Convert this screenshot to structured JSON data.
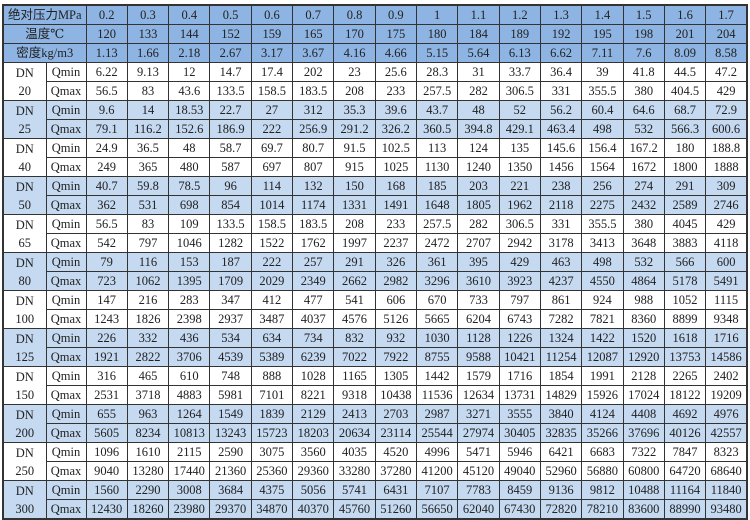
{
  "colors": {
    "header_bg": "#8db4e2",
    "band_bg": "#c5d9f1",
    "plain_bg": "#ffffff"
  },
  "header": {
    "pressure_label": "绝对压力MPa",
    "temperature_label": "温度℃",
    "density_label": "密度kg/m3",
    "pressures": [
      "0.2",
      "0.3",
      "0.4",
      "0.5",
      "0.6",
      "0.7",
      "0.8",
      "0.9",
      "1",
      "1.1",
      "1.2",
      "1.3",
      "1.4",
      "1.5",
      "1.6",
      "1.7"
    ],
    "temperatures": [
      "120",
      "133",
      "144",
      "152",
      "159",
      "165",
      "170",
      "175",
      "180",
      "184",
      "189",
      "192",
      "195",
      "198",
      "201",
      "204"
    ],
    "densities": [
      "1.13",
      "1.66",
      "2.18",
      "2.67",
      "3.17",
      "3.67",
      "4.16",
      "4.66",
      "5.15",
      "5.64",
      "6.13",
      "6.62",
      "7.11",
      "7.6",
      "8.09",
      "8.58"
    ]
  },
  "labels": {
    "dn": "DN",
    "qmin": "Qmin",
    "qmax": "Qmax"
  },
  "rows": [
    {
      "size": "20",
      "qmin": [
        "6.22",
        "9.13",
        "12",
        "14.7",
        "17.4",
        "202",
        "23",
        "25.6",
        "28.3",
        "31",
        "33.7",
        "36.4",
        "39",
        "41.8",
        "44.5",
        "47.2"
      ],
      "qmax": [
        "56.5",
        "83",
        "43.6",
        "133.5",
        "158.5",
        "183.5",
        "208",
        "233",
        "257.5",
        "282",
        "306.5",
        "331",
        "355.5",
        "380",
        "404.5",
        "429"
      ]
    },
    {
      "size": "25",
      "qmin": [
        "9.6",
        "14",
        "18.53",
        "22.7",
        "27",
        "312",
        "35.3",
        "39.6",
        "43.7",
        "48",
        "52",
        "56.2",
        "60.4",
        "64.6",
        "68.7",
        "72.9"
      ],
      "qmax": [
        "79.1",
        "116.2",
        "152.6",
        "186.9",
        "222",
        "256.9",
        "291.2",
        "326.2",
        "360.5",
        "394.8",
        "429.1",
        "463.4",
        "498",
        "532",
        "566.3",
        "600.6"
      ]
    },
    {
      "size": "40",
      "qmin": [
        "24.9",
        "36.5",
        "48",
        "58.7",
        "69.7",
        "80.7",
        "91.5",
        "102.5",
        "113",
        "124",
        "135",
        "145.6",
        "156.4",
        "167.2",
        "180",
        "188.8"
      ],
      "qmax": [
        "249",
        "365",
        "480",
        "587",
        "697",
        "807",
        "915",
        "1025",
        "1130",
        "1240",
        "1350",
        "1456",
        "1564",
        "1672",
        "1800",
        "1888"
      ]
    },
    {
      "size": "50",
      "qmin": [
        "40.7",
        "59.8",
        "78.5",
        "96",
        "114",
        "132",
        "150",
        "168",
        "185",
        "203",
        "221",
        "238",
        "256",
        "274",
        "291",
        "309"
      ],
      "qmax": [
        "362",
        "531",
        "698",
        "854",
        "1014",
        "1174",
        "1331",
        "1491",
        "1648",
        "1805",
        "1962",
        "2118",
        "2275",
        "2432",
        "2589",
        "2746"
      ]
    },
    {
      "size": "65",
      "qmin": [
        "56.5",
        "83",
        "109",
        "133.5",
        "158.5",
        "183.5",
        "208",
        "233",
        "257.5",
        "282",
        "306.5",
        "331",
        "355.5",
        "380",
        "4045",
        "429"
      ],
      "qmax": [
        "542",
        "797",
        "1046",
        "1282",
        "1522",
        "1762",
        "1997",
        "2237",
        "2472",
        "2707",
        "2942",
        "3178",
        "3413",
        "3648",
        "3883",
        "4118"
      ]
    },
    {
      "size": "80",
      "qmin": [
        "79",
        "116",
        "153",
        "187",
        "222",
        "257",
        "291",
        "326",
        "361",
        "395",
        "429",
        "463",
        "498",
        "532",
        "566",
        "600"
      ],
      "qmax": [
        "723",
        "1062",
        "1395",
        "1709",
        "2029",
        "2349",
        "2662",
        "2982",
        "3296",
        "3610",
        "3923",
        "4237",
        "4550",
        "4864",
        "5178",
        "5491"
      ]
    },
    {
      "size": "100",
      "qmin": [
        "147",
        "216",
        "283",
        "347",
        "412",
        "477",
        "541",
        "606",
        "670",
        "733",
        "797",
        "861",
        "924",
        "988",
        "1052",
        "1115"
      ],
      "qmax": [
        "1243",
        "1826",
        "2398",
        "2937",
        "3487",
        "4037",
        "4576",
        "5126",
        "5665",
        "6204",
        "6743",
        "7282",
        "7821",
        "8360",
        "8899",
        "9348"
      ]
    },
    {
      "size": "125",
      "qmin": [
        "226",
        "332",
        "436",
        "534",
        "634",
        "734",
        "832",
        "932",
        "1030",
        "1128",
        "1226",
        "1324",
        "1422",
        "1520",
        "1618",
        "1716"
      ],
      "qmax": [
        "1921",
        "2822",
        "3706",
        "4539",
        "5389",
        "6239",
        "7022",
        "7922",
        "8755",
        "9588",
        "10421",
        "11254",
        "12087",
        "12920",
        "13753",
        "14586"
      ]
    },
    {
      "size": "150",
      "qmin": [
        "316",
        "465",
        "610",
        "748",
        "888",
        "1028",
        "1165",
        "1305",
        "1442",
        "1579",
        "1716",
        "1854",
        "1991",
        "2128",
        "2265",
        "2402"
      ],
      "qmax": [
        "2531",
        "3718",
        "4883",
        "5981",
        "7101",
        "8221",
        "9318",
        "10438",
        "11536",
        "12634",
        "13731",
        "14829",
        "15926",
        "17024",
        "18122",
        "19209"
      ]
    },
    {
      "size": "200",
      "qmin": [
        "655",
        "963",
        "1264",
        "1549",
        "1839",
        "2129",
        "2413",
        "2703",
        "2987",
        "3271",
        "3555",
        "3840",
        "4124",
        "4408",
        "4692",
        "4976"
      ],
      "qmax": [
        "5605",
        "8234",
        "10813",
        "13243",
        "15723",
        "18203",
        "20634",
        "23114",
        "25544",
        "27974",
        "30405",
        "32835",
        "35266",
        "37696",
        "40126",
        "42557"
      ]
    },
    {
      "size": "250",
      "qmin": [
        "1096",
        "1610",
        "2115",
        "2590",
        "3075",
        "3560",
        "4035",
        "4520",
        "4996",
        "5471",
        "5946",
        "6421",
        "6683",
        "7322",
        "7847",
        "8323"
      ],
      "qmax": [
        "9040",
        "13280",
        "17440",
        "21360",
        "25360",
        "29360",
        "33280",
        "37280",
        "41200",
        "45120",
        "49040",
        "52960",
        "56880",
        "60800",
        "64720",
        "68640"
      ]
    },
    {
      "size": "300",
      "qmin": [
        "1560",
        "2290",
        "3008",
        "3684",
        "4375",
        "5056",
        "5741",
        "6431",
        "7107",
        "7783",
        "8459",
        "9136",
        "9812",
        "10488",
        "11164",
        "11840"
      ],
      "qmax": [
        "12430",
        "18260",
        "23980",
        "29370",
        "34870",
        "40370",
        "45760",
        "51260",
        "56650",
        "62040",
        "67430",
        "72820",
        "78210",
        "83600",
        "88990",
        "93480"
      ]
    }
  ]
}
